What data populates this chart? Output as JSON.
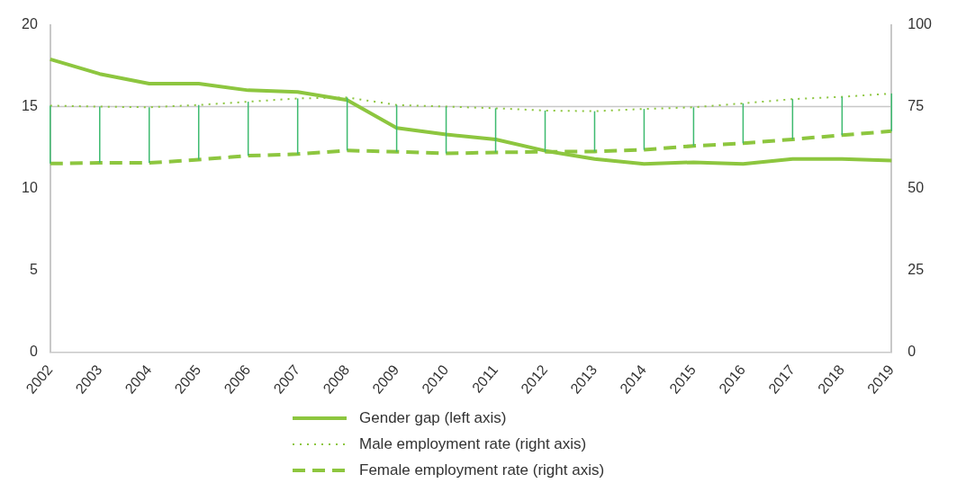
{
  "chart_data": {
    "type": "line",
    "categories": [
      "2002",
      "2003",
      "2004",
      "2005",
      "2006",
      "2007",
      "2008",
      "2009",
      "2010",
      "2011",
      "2012",
      "2013",
      "2014",
      "2015",
      "2016",
      "2017",
      "2018",
      "2019"
    ],
    "series": [
      {
        "name": "Gender gap (left axis)",
        "color": "#8dc63f",
        "line_style": "solid",
        "values": [
          17.9,
          17.0,
          16.4,
          16.4,
          16.0,
          15.9,
          15.4,
          13.7,
          13.3,
          13.0,
          12.3,
          11.8,
          11.5,
          11.6,
          11.5,
          11.8,
          11.8,
          11.7
        ]
      },
      {
        "name": "Male employment rate (right axis)",
        "color": "#8dc63f",
        "line_style": "dotted",
        "axis": "y2",
        "errors": [
          [
            57.6,
            75.3
          ],
          [
            57.8,
            75.0
          ],
          [
            57.8,
            74.8
          ],
          [
            58.8,
            75.5
          ],
          [
            60.0,
            76.5
          ],
          [
            60.5,
            77.5
          ],
          [
            61.6,
            77.8
          ],
          [
            61.2,
            75.5
          ],
          [
            60.7,
            75.0
          ],
          [
            61.0,
            74.5
          ],
          [
            61.2,
            73.8
          ],
          [
            61.3,
            73.6
          ],
          [
            61.8,
            74.3
          ],
          [
            63.0,
            74.8
          ],
          [
            63.8,
            76.0
          ],
          [
            65.0,
            77.3
          ],
          [
            66.3,
            78.0
          ],
          [
            67.5,
            79.0
          ]
        ],
        "values": [
          75.3,
          75.0,
          74.8,
          75.5,
          76.5,
          77.5,
          77.8,
          75.5,
          75.0,
          74.5,
          73.8,
          73.6,
          74.3,
          74.8,
          76.0,
          77.3,
          78.0,
          79.0
        ]
      },
      {
        "name": "Female employment rate (right axis)",
        "color": "#8dc63f",
        "line_style": "dashed",
        "axis": "y2",
        "values": [
          57.6,
          57.8,
          57.8,
          58.8,
          60.0,
          60.5,
          61.6,
          61.2,
          60.7,
          61.0,
          61.2,
          61.3,
          61.8,
          63.0,
          63.8,
          65.0,
          66.3,
          67.5
        ]
      }
    ],
    "ylim": [
      0,
      20
    ],
    "yticks": [
      0,
      5,
      10,
      15,
      20
    ],
    "y2lim": [
      0,
      100
    ],
    "y2ticks": [
      0,
      25,
      50,
      75,
      100
    ],
    "ref_lines": [
      {
        "axis": "y",
        "value": 15,
        "color": "#c8c8c8"
      }
    ],
    "marker": "none",
    "legend": "bottom",
    "grid": false
  }
}
